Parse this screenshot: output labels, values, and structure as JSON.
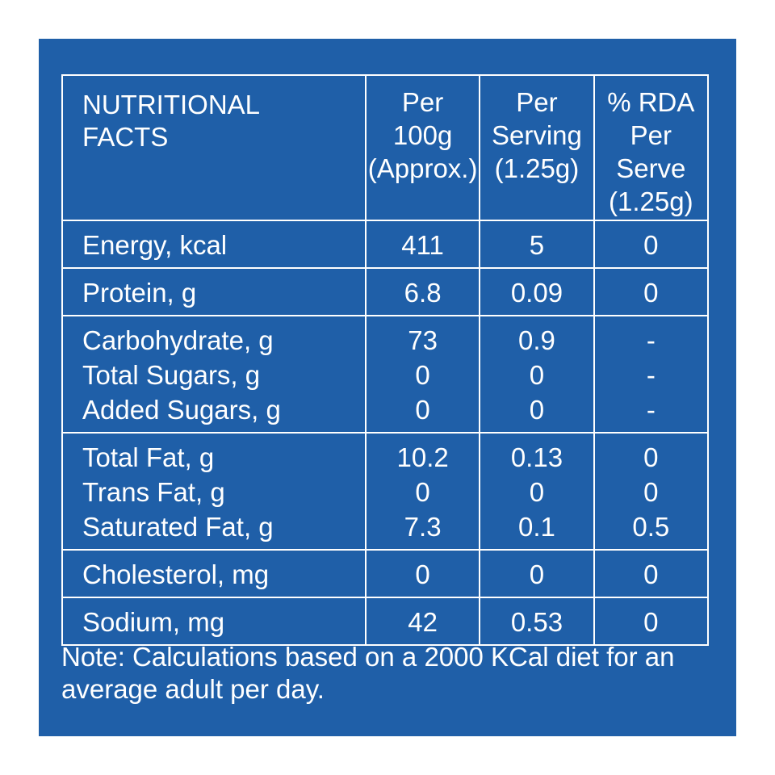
{
  "header": {
    "title_lines": [
      "NUTRITIONAL",
      "FACTS"
    ],
    "col1_lines": [
      "Per",
      "100g",
      "(Approx.)"
    ],
    "col2_lines": [
      "Per",
      "Serving",
      "(1.25g)"
    ],
    "col3_lines": [
      "% RDA",
      "Per",
      "Serve",
      "(1.25g)"
    ]
  },
  "groups": [
    {
      "rows": [
        {
          "name": "Energy, kcal",
          "per100": "411",
          "serving": "5",
          "rda": "0"
        }
      ]
    },
    {
      "rows": [
        {
          "name": "Protein, g",
          "per100": "6.8",
          "serving": "0.09",
          "rda": "0"
        }
      ]
    },
    {
      "rows": [
        {
          "name": "Carbohydrate, g",
          "per100": "73",
          "serving": "0.9",
          "rda": "-"
        },
        {
          "name": "Total Sugars, g",
          "per100": "0",
          "serving": "0",
          "rda": "-"
        },
        {
          "name": "Added Sugars, g",
          "per100": "0",
          "serving": "0",
          "rda": "-"
        }
      ]
    },
    {
      "rows": [
        {
          "name": "Total Fat, g",
          "per100": "10.2",
          "serving": "0.13",
          "rda": "0"
        },
        {
          "name": "Trans Fat, g",
          "per100": "0",
          "serving": "0",
          "rda": "0"
        },
        {
          "name": "Saturated Fat, g",
          "per100": "7.3",
          "serving": "0.1",
          "rda": "0.5"
        }
      ]
    },
    {
      "rows": [
        {
          "name": "Cholesterol, mg",
          "per100": "0",
          "serving": "0",
          "rda": "0"
        }
      ]
    },
    {
      "rows": [
        {
          "name": "Sodium, mg",
          "per100": "42",
          "serving": "0.53",
          "rda": "0"
        }
      ]
    }
  ],
  "note_lines": [
    "Note: Calculations based on a 2000 KCal diet for an",
    "average adult per day."
  ],
  "colors": {
    "background": "#1f5fa8",
    "text": "#ffffff",
    "border": "#ffffff"
  }
}
